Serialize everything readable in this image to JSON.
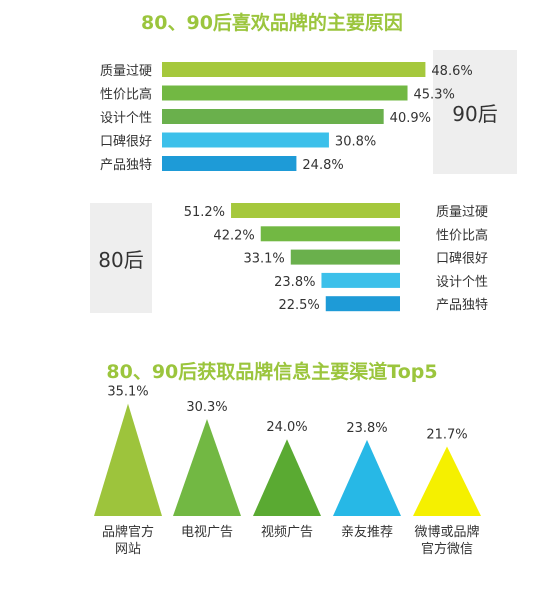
{
  "title1": "80、90后喜欢品牌的主要原因",
  "title2": "80、90后获取品牌信息主要渠道Top5",
  "colors": {
    "title": "#9bc53d"
  },
  "chart_data": [
    {
      "type": "bar",
      "group": "90后",
      "categories": [
        "质量过硬",
        "性价比高",
        "设计个性",
        "口碑很好",
        "产品独特"
      ],
      "values": [
        48.6,
        45.3,
        40.9,
        30.8,
        24.8
      ],
      "value_labels": [
        "48.6%",
        "45.3%",
        "40.9%",
        "30.8%",
        "24.8%"
      ],
      "colors": [
        "#a5c83c",
        "#72b843",
        "#6ab04c",
        "#3cc0ea",
        "#1e9bd7"
      ],
      "orientation": "horizontal",
      "xlim": [
        0,
        55
      ],
      "legend": "none",
      "grid": false
    },
    {
      "type": "bar",
      "group": "80后",
      "categories": [
        "质量过硬",
        "性价比高",
        "口碑很好",
        "设计个性",
        "产品独特"
      ],
      "values": [
        51.2,
        42.2,
        33.1,
        23.8,
        22.5
      ],
      "value_labels": [
        "51.2%",
        "42.2%",
        "33.1%",
        "23.8%",
        "22.5%"
      ],
      "colors": [
        "#a5c83c",
        "#72b843",
        "#6ab04c",
        "#3cc0ea",
        "#1e9bd7"
      ],
      "orientation": "horizontal-reversed",
      "xlim": [
        0,
        55
      ],
      "legend": "none",
      "grid": false
    },
    {
      "type": "bar",
      "style": "triangle",
      "categories": [
        "品牌官方\n网站",
        "电视广告",
        "视频广告",
        "亲友推荐",
        "微博或品牌\n官方微信"
      ],
      "values": [
        35.1,
        30.3,
        24.0,
        23.8,
        21.7
      ],
      "value_labels": [
        "35.1%",
        "30.3%",
        "24.0%",
        "23.8%",
        "21.7%"
      ],
      "colors": [
        "#9dc43c",
        "#72b843",
        "#5aaa32",
        "#27b8e6",
        "#f5f000"
      ],
      "ylim": [
        0,
        36
      ],
      "legend": "none",
      "grid": false
    }
  ]
}
